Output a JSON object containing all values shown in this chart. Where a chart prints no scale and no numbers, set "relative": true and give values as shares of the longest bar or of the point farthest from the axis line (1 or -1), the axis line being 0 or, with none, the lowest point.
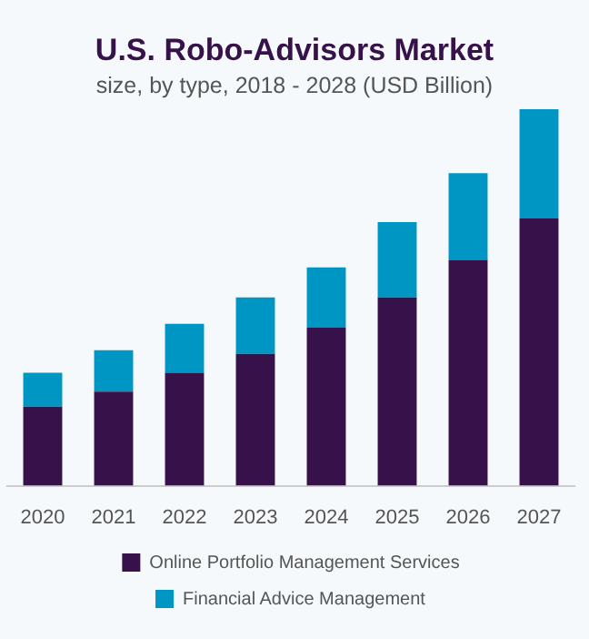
{
  "chart_data": {
    "type": "bar",
    "title": "U.S. Robo-Advisors Market",
    "subtitle": "size, by type, 2018 - 2028 (USD Billion)",
    "categories": [
      "2020",
      "2021",
      "2022",
      "2023",
      "2024",
      "2025",
      "2026",
      "2027"
    ],
    "stacked": true,
    "relative": true,
    "legend": "bottom",
    "grid": false,
    "series": [
      {
        "name": "Online Portfolio Management Services",
        "color": "#36114a",
        "values": [
          0.21,
          0.25,
          0.3,
          0.35,
          0.42,
          0.5,
          0.6,
          0.71
        ]
      },
      {
        "name": "Financial Advice Management",
        "color": "#0096c4",
        "values": [
          0.09,
          0.11,
          0.13,
          0.15,
          0.16,
          0.2,
          0.23,
          0.29
        ]
      }
    ]
  }
}
